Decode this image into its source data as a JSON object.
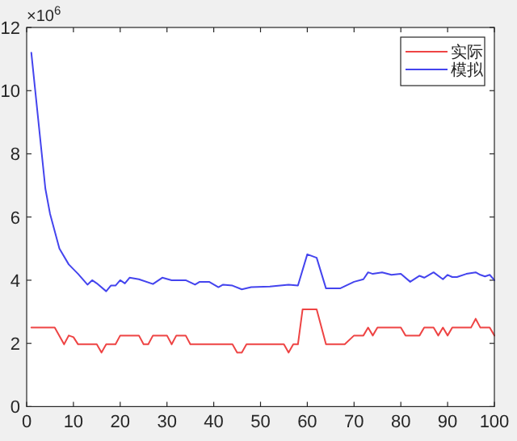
{
  "chart_data": {
    "type": "line",
    "xlim": [
      0,
      100
    ],
    "ylim": [
      0,
      12
    ],
    "xticks": [
      0,
      10,
      20,
      30,
      40,
      50,
      60,
      70,
      80,
      90,
      100
    ],
    "yticks": [
      0,
      2,
      4,
      6,
      8,
      10,
      12
    ],
    "legend": "top right",
    "annotations": [
      "×10$^{6}$"
    ],
    "series": [
      {
        "name": "实际",
        "color": "#ee4444",
        "x": [
          1,
          6,
          8,
          9,
          10,
          11,
          15,
          16,
          17,
          19,
          20,
          24,
          25,
          26,
          27,
          30,
          31,
          32,
          34,
          35,
          44,
          45,
          46,
          47,
          55,
          56,
          57,
          58,
          59,
          62,
          64,
          68,
          70,
          72,
          73,
          74,
          75,
          80,
          81,
          84,
          85,
          87,
          88,
          89,
          90,
          91,
          95,
          96,
          97,
          99,
          100
        ],
        "values": [
          2.5,
          2.5,
          1.97,
          2.25,
          2.2,
          1.97,
          1.97,
          1.71,
          1.97,
          1.97,
          2.25,
          2.25,
          1.97,
          1.97,
          2.25,
          2.25,
          1.97,
          2.25,
          2.25,
          1.97,
          1.97,
          1.71,
          1.71,
          1.97,
          1.97,
          1.71,
          1.97,
          1.97,
          3.08,
          3.08,
          1.97,
          1.97,
          2.25,
          2.25,
          2.5,
          2.25,
          2.5,
          2.5,
          2.25,
          2.25,
          2.5,
          2.5,
          2.25,
          2.5,
          2.25,
          2.5,
          2.5,
          2.78,
          2.5,
          2.5,
          2.25
        ]
      },
      {
        "name": "模拟",
        "color": "#4444ee",
        "x": [
          1,
          4,
          5,
          7,
          9,
          11,
          13,
          14,
          15,
          17,
          18,
          19,
          20,
          21,
          22,
          24,
          27,
          29,
          31,
          34,
          36,
          37,
          39,
          41,
          42,
          44,
          46,
          48,
          52,
          56,
          58,
          60,
          62,
          64,
          67,
          70,
          72,
          73,
          74,
          76,
          78,
          80,
          82,
          84,
          85,
          87,
          89,
          90,
          91,
          92,
          94,
          96,
          97,
          98,
          99,
          100
        ],
        "values": [
          11.2,
          6.9,
          6.1,
          5.0,
          4.5,
          4.2,
          3.86,
          4.0,
          3.9,
          3.65,
          3.83,
          3.83,
          4.0,
          3.9,
          4.08,
          4.03,
          3.88,
          4.08,
          4.0,
          4.0,
          3.86,
          3.95,
          3.95,
          3.78,
          3.86,
          3.83,
          3.71,
          3.78,
          3.8,
          3.86,
          3.83,
          4.82,
          4.71,
          3.74,
          3.74,
          3.95,
          4.03,
          4.25,
          4.2,
          4.25,
          4.17,
          4.2,
          3.95,
          4.14,
          4.08,
          4.25,
          4.03,
          4.17,
          4.1,
          4.1,
          4.2,
          4.25,
          4.17,
          4.12,
          4.17,
          4.0
        ]
      }
    ]
  }
}
